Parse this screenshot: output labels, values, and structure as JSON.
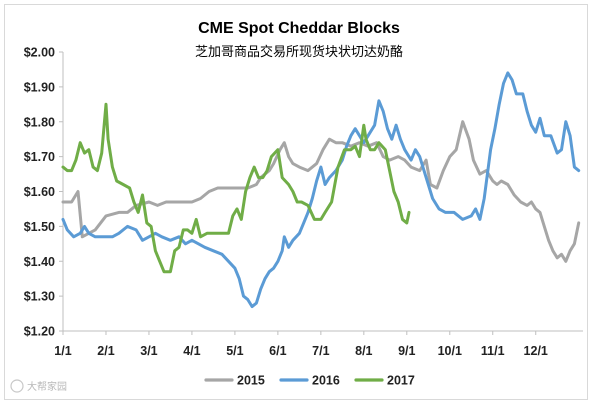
{
  "chart_data": {
    "type": "line",
    "title": "CME Spot Cheddar Blocks",
    "subtitle": "芝加哥商品交易所现货块状切达奶酪",
    "xlabel": "",
    "ylabel": "",
    "ylim": [
      1.2,
      2.0
    ],
    "y_ticks": [
      "$1.20",
      "$1.30",
      "$1.40",
      "$1.50",
      "$1.60",
      "$1.70",
      "$1.80",
      "$1.90",
      "$2.00"
    ],
    "y_tick_values": [
      1.2,
      1.3,
      1.4,
      1.5,
      1.6,
      1.7,
      1.8,
      1.9,
      2.0
    ],
    "x_ticks": [
      "1/1",
      "2/1",
      "3/1",
      "4/1",
      "5/1",
      "6/1",
      "7/1",
      "8/1",
      "9/1",
      "10/1",
      "11/1",
      "12/1"
    ],
    "x_tick_values": [
      1,
      2,
      3,
      4,
      5,
      6,
      7,
      8,
      9,
      10,
      11,
      12
    ],
    "xlim": [
      1,
      13.1
    ],
    "grid": false,
    "legend_position": "bottom",
    "series": [
      {
        "name": "2015",
        "color": "#a6a6a6",
        "points": [
          [
            1.0,
            1.57
          ],
          [
            1.2,
            1.57
          ],
          [
            1.35,
            1.6
          ],
          [
            1.45,
            1.47
          ],
          [
            1.6,
            1.48
          ],
          [
            1.75,
            1.49
          ],
          [
            2.0,
            1.53
          ],
          [
            2.3,
            1.54
          ],
          [
            2.5,
            1.54
          ],
          [
            2.7,
            1.56
          ],
          [
            3.0,
            1.57
          ],
          [
            3.2,
            1.56
          ],
          [
            3.4,
            1.57
          ],
          [
            3.7,
            1.57
          ],
          [
            4.0,
            1.57
          ],
          [
            4.2,
            1.58
          ],
          [
            4.4,
            1.6
          ],
          [
            4.6,
            1.61
          ],
          [
            4.9,
            1.61
          ],
          [
            5.1,
            1.61
          ],
          [
            5.3,
            1.61
          ],
          [
            5.5,
            1.62
          ],
          [
            5.6,
            1.64
          ],
          [
            5.7,
            1.65
          ],
          [
            5.8,
            1.66
          ],
          [
            5.9,
            1.68
          ],
          [
            6.05,
            1.72
          ],
          [
            6.15,
            1.74
          ],
          [
            6.25,
            1.7
          ],
          [
            6.35,
            1.68
          ],
          [
            6.5,
            1.67
          ],
          [
            6.7,
            1.66
          ],
          [
            6.9,
            1.68
          ],
          [
            7.05,
            1.72
          ],
          [
            7.2,
            1.75
          ],
          [
            7.35,
            1.74
          ],
          [
            7.5,
            1.74
          ],
          [
            7.7,
            1.73
          ],
          [
            7.9,
            1.74
          ],
          [
            8.1,
            1.73
          ],
          [
            8.3,
            1.74
          ],
          [
            8.45,
            1.7
          ],
          [
            8.6,
            1.69
          ],
          [
            8.8,
            1.7
          ],
          [
            8.95,
            1.69
          ],
          [
            9.1,
            1.67
          ],
          [
            9.3,
            1.66
          ],
          [
            9.45,
            1.69
          ],
          [
            9.55,
            1.62
          ],
          [
            9.7,
            1.61
          ],
          [
            9.85,
            1.66
          ],
          [
            10.0,
            1.7
          ],
          [
            10.15,
            1.72
          ],
          [
            10.3,
            1.8
          ],
          [
            10.45,
            1.75
          ],
          [
            10.55,
            1.69
          ],
          [
            10.7,
            1.65
          ],
          [
            10.85,
            1.66
          ],
          [
            11.0,
            1.63
          ],
          [
            11.1,
            1.62
          ],
          [
            11.2,
            1.63
          ],
          [
            11.35,
            1.62
          ],
          [
            11.5,
            1.59
          ],
          [
            11.65,
            1.57
          ],
          [
            11.8,
            1.56
          ],
          [
            11.9,
            1.57
          ],
          [
            12.0,
            1.55
          ],
          [
            12.1,
            1.54
          ],
          [
            12.2,
            1.5
          ],
          [
            12.3,
            1.46
          ],
          [
            12.4,
            1.43
          ],
          [
            12.5,
            1.41
          ],
          [
            12.6,
            1.42
          ],
          [
            12.7,
            1.4
          ],
          [
            12.8,
            1.43
          ],
          [
            12.9,
            1.45
          ],
          [
            13.0,
            1.51
          ]
        ]
      },
      {
        "name": "2016",
        "color": "#5b9bd5",
        "points": [
          [
            1.0,
            1.52
          ],
          [
            1.1,
            1.49
          ],
          [
            1.25,
            1.47
          ],
          [
            1.4,
            1.48
          ],
          [
            1.5,
            1.5
          ],
          [
            1.6,
            1.48
          ],
          [
            1.75,
            1.47
          ],
          [
            1.9,
            1.47
          ],
          [
            2.0,
            1.47
          ],
          [
            2.15,
            1.47
          ],
          [
            2.3,
            1.48
          ],
          [
            2.5,
            1.5
          ],
          [
            2.7,
            1.49
          ],
          [
            2.85,
            1.46
          ],
          [
            3.0,
            1.47
          ],
          [
            3.15,
            1.48
          ],
          [
            3.3,
            1.47
          ],
          [
            3.5,
            1.46
          ],
          [
            3.7,
            1.47
          ],
          [
            3.85,
            1.45
          ],
          [
            4.0,
            1.46
          ],
          [
            4.15,
            1.45
          ],
          [
            4.3,
            1.44
          ],
          [
            4.5,
            1.43
          ],
          [
            4.7,
            1.42
          ],
          [
            4.85,
            1.4
          ],
          [
            5.0,
            1.38
          ],
          [
            5.1,
            1.35
          ],
          [
            5.2,
            1.3
          ],
          [
            5.3,
            1.29
          ],
          [
            5.4,
            1.27
          ],
          [
            5.5,
            1.28
          ],
          [
            5.6,
            1.32
          ],
          [
            5.7,
            1.35
          ],
          [
            5.8,
            1.37
          ],
          [
            5.9,
            1.38
          ],
          [
            6.0,
            1.4
          ],
          [
            6.1,
            1.43
          ],
          [
            6.15,
            1.47
          ],
          [
            6.25,
            1.44
          ],
          [
            6.35,
            1.46
          ],
          [
            6.5,
            1.48
          ],
          [
            6.6,
            1.51
          ],
          [
            6.7,
            1.54
          ],
          [
            6.8,
            1.58
          ],
          [
            6.9,
            1.63
          ],
          [
            7.0,
            1.67
          ],
          [
            7.1,
            1.62
          ],
          [
            7.2,
            1.64
          ],
          [
            7.35,
            1.66
          ],
          [
            7.5,
            1.69
          ],
          [
            7.6,
            1.73
          ],
          [
            7.7,
            1.76
          ],
          [
            7.8,
            1.78
          ],
          [
            7.9,
            1.76
          ],
          [
            8.0,
            1.74
          ],
          [
            8.1,
            1.76
          ],
          [
            8.25,
            1.79
          ],
          [
            8.35,
            1.86
          ],
          [
            8.45,
            1.83
          ],
          [
            8.55,
            1.78
          ],
          [
            8.65,
            1.75
          ],
          [
            8.75,
            1.79
          ],
          [
            8.85,
            1.75
          ],
          [
            8.95,
            1.72
          ],
          [
            9.1,
            1.69
          ],
          [
            9.2,
            1.72
          ],
          [
            9.3,
            1.7
          ],
          [
            9.4,
            1.66
          ],
          [
            9.5,
            1.62
          ],
          [
            9.6,
            1.58
          ],
          [
            9.75,
            1.55
          ],
          [
            9.9,
            1.54
          ],
          [
            10.1,
            1.54
          ],
          [
            10.3,
            1.52
          ],
          [
            10.5,
            1.53
          ],
          [
            10.6,
            1.55
          ],
          [
            10.7,
            1.52
          ],
          [
            10.8,
            1.58
          ],
          [
            10.95,
            1.72
          ],
          [
            11.05,
            1.78
          ],
          [
            11.15,
            1.85
          ],
          [
            11.25,
            1.91
          ],
          [
            11.35,
            1.94
          ],
          [
            11.45,
            1.92
          ],
          [
            11.55,
            1.88
          ],
          [
            11.7,
            1.88
          ],
          [
            11.8,
            1.83
          ],
          [
            11.9,
            1.79
          ],
          [
            12.0,
            1.77
          ],
          [
            12.1,
            1.81
          ],
          [
            12.2,
            1.76
          ],
          [
            12.35,
            1.76
          ],
          [
            12.5,
            1.71
          ],
          [
            12.6,
            1.72
          ],
          [
            12.7,
            1.8
          ],
          [
            12.8,
            1.76
          ],
          [
            12.9,
            1.67
          ],
          [
            13.0,
            1.66
          ]
        ]
      },
      {
        "name": "2017",
        "color": "#70ad47",
        "points": [
          [
            1.0,
            1.67
          ],
          [
            1.1,
            1.66
          ],
          [
            1.2,
            1.66
          ],
          [
            1.3,
            1.69
          ],
          [
            1.4,
            1.74
          ],
          [
            1.5,
            1.71
          ],
          [
            1.6,
            1.72
          ],
          [
            1.7,
            1.67
          ],
          [
            1.8,
            1.66
          ],
          [
            1.9,
            1.71
          ],
          [
            2.0,
            1.85
          ],
          [
            2.05,
            1.75
          ],
          [
            2.15,
            1.67
          ],
          [
            2.25,
            1.63
          ],
          [
            2.4,
            1.62
          ],
          [
            2.55,
            1.61
          ],
          [
            2.65,
            1.57
          ],
          [
            2.75,
            1.54
          ],
          [
            2.85,
            1.59
          ],
          [
            2.95,
            1.51
          ],
          [
            3.05,
            1.5
          ],
          [
            3.15,
            1.43
          ],
          [
            3.25,
            1.4
          ],
          [
            3.35,
            1.37
          ],
          [
            3.5,
            1.37
          ],
          [
            3.6,
            1.43
          ],
          [
            3.7,
            1.44
          ],
          [
            3.8,
            1.49
          ],
          [
            3.9,
            1.49
          ],
          [
            4.0,
            1.48
          ],
          [
            4.1,
            1.52
          ],
          [
            4.2,
            1.47
          ],
          [
            4.35,
            1.48
          ],
          [
            4.55,
            1.48
          ],
          [
            4.7,
            1.48
          ],
          [
            4.85,
            1.48
          ],
          [
            4.95,
            1.53
          ],
          [
            5.05,
            1.55
          ],
          [
            5.15,
            1.52
          ],
          [
            5.25,
            1.6
          ],
          [
            5.35,
            1.64
          ],
          [
            5.45,
            1.67
          ],
          [
            5.55,
            1.64
          ],
          [
            5.65,
            1.64
          ],
          [
            5.75,
            1.66
          ],
          [
            5.85,
            1.7
          ],
          [
            6.0,
            1.72
          ],
          [
            6.1,
            1.64
          ],
          [
            6.25,
            1.62
          ],
          [
            6.35,
            1.6
          ],
          [
            6.45,
            1.57
          ],
          [
            6.55,
            1.57
          ],
          [
            6.7,
            1.56
          ],
          [
            6.85,
            1.52
          ],
          [
            7.0,
            1.52
          ],
          [
            7.1,
            1.54
          ],
          [
            7.25,
            1.57
          ],
          [
            7.4,
            1.67
          ],
          [
            7.55,
            1.72
          ],
          [
            7.7,
            1.72
          ],
          [
            7.8,
            1.73
          ],
          [
            7.9,
            1.7
          ],
          [
            8.0,
            1.79
          ],
          [
            8.05,
            1.75
          ],
          [
            8.15,
            1.72
          ],
          [
            8.25,
            1.72
          ],
          [
            8.35,
            1.74
          ],
          [
            8.5,
            1.72
          ],
          [
            8.6,
            1.66
          ],
          [
            8.7,
            1.6
          ],
          [
            8.8,
            1.57
          ],
          [
            8.9,
            1.52
          ],
          [
            9.0,
            1.51
          ],
          [
            9.05,
            1.54
          ]
        ]
      }
    ]
  },
  "watermark": "大帮家园",
  "colors": {
    "axis": "#bfbfbf",
    "text": "#222222",
    "border": "#d9d9d9"
  }
}
